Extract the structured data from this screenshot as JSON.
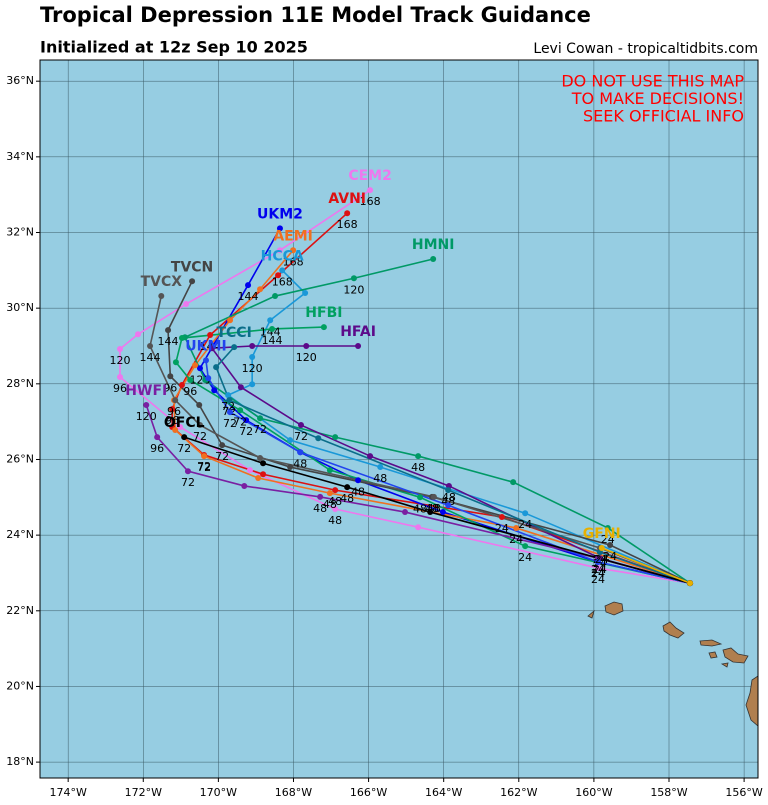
{
  "chart_data": {
    "type": "line",
    "title": "Tropical Depression 11E Model Track Guidance",
    "subtitle": "Initialized at 12z Sep 10 2025",
    "credit": "Levi Cowan - tropicaltidbits.com",
    "warning": [
      "DO NOT USE THIS MAP",
      "TO MAKE DECISIONS!",
      "SEEK OFFICIAL INFO"
    ],
    "warning_color": "#ff0000",
    "background": "#96cde2",
    "grid": true,
    "xlim": [
      -174.75,
      -155.63
    ],
    "ylim": [
      17.58,
      36.56
    ],
    "xticks": [
      {
        "value": -174,
        "label": "174°W"
      },
      {
        "value": -172,
        "label": "172°W"
      },
      {
        "value": -170,
        "label": "170°W"
      },
      {
        "value": -168,
        "label": "168°W"
      },
      {
        "value": -166,
        "label": "166°W"
      },
      {
        "value": -164,
        "label": "164°W"
      },
      {
        "value": -162,
        "label": "162°W"
      },
      {
        "value": -160,
        "label": "160°W"
      },
      {
        "value": -158,
        "label": "158°W"
      },
      {
        "value": -156,
        "label": "156°W"
      }
    ],
    "yticks": [
      {
        "value": 18,
        "label": "18°N"
      },
      {
        "value": 20,
        "label": "20°N"
      },
      {
        "value": 22,
        "label": "22°N"
      },
      {
        "value": 24,
        "label": "24°N"
      },
      {
        "value": 26,
        "label": "26°N"
      },
      {
        "value": 28,
        "label": "28°N"
      },
      {
        "value": 30,
        "label": "30°N"
      },
      {
        "value": 32,
        "label": "32°N"
      },
      {
        "value": 34,
        "label": "34°N"
      },
      {
        "value": 36,
        "label": "36°N"
      }
    ],
    "series": [
      {
        "name": "CEM2",
        "color": "#ee77ee",
        "x": [
          -157.44,
          -159.89,
          -164.68,
          -166.89,
          -169.16,
          -171.02,
          -172.62,
          -172.62,
          -172.14,
          -170.86,
          -168.36,
          -165.96
        ],
        "values": [
          22.73,
          23.13,
          24.21,
          24.69,
          25.72,
          26.86,
          28.18,
          28.92,
          29.31,
          30.11,
          31.53,
          33.12
        ],
        "labels": [
          null,
          24,
          null,
          48,
          null,
          null,
          96,
          120,
          null,
          null,
          null,
          168
        ]
      },
      {
        "name": "AVNI",
        "color": "#dd1111",
        "x": [
          -157.44,
          -162.45,
          -166.89,
          -168.81,
          -170.38,
          -171.23,
          -171.23,
          -170.97,
          -170.22,
          -168.41,
          -166.57
        ],
        "values": [
          22.73,
          24.48,
          25.19,
          25.61,
          26.12,
          26.86,
          27.33,
          27.97,
          29.29,
          30.87,
          32.51
        ],
        "labels": [
          null,
          24,
          48,
          null,
          72,
          null,
          96,
          null,
          144,
          null,
          168
        ]
      },
      {
        "name": "UKM2",
        "color": "#0000ee",
        "x": [
          -157.44,
          -159.89,
          -164.02,
          -166.28,
          -167.82,
          -169.26,
          -170.11,
          -170.49,
          -169.21,
          -168.36
        ],
        "values": [
          22.73,
          23.29,
          24.61,
          25.45,
          26.19,
          27.04,
          27.83,
          28.41,
          30.61,
          32.11
        ],
        "labels": [
          null,
          24,
          null,
          48,
          null,
          72,
          null,
          120,
          144,
          null
        ]
      },
      {
        "name": "AEMI",
        "color": "#f07020",
        "x": [
          -157.44,
          -162.07,
          -167.03,
          -168.94,
          -170.38,
          -171.15,
          -171.18,
          -170.62,
          -169.69,
          -168.89,
          -168.01
        ],
        "values": [
          22.73,
          24.19,
          25.11,
          25.51,
          26.09,
          26.78,
          27.57,
          28.49,
          29.68,
          30.5,
          31.53
        ],
        "labels": [
          null,
          24,
          48,
          null,
          72,
          null,
          96,
          null,
          null,
          null,
          168
        ]
      },
      {
        "name": "HCCA",
        "color": "#1a98d8",
        "x": [
          -157.44,
          -161.83,
          -165.69,
          -168.09,
          -169.74,
          -169.1,
          -169.1,
          -168.62,
          -167.69,
          -168.3
        ],
        "values": [
          22.73,
          24.58,
          25.8,
          26.51,
          27.7,
          27.99,
          28.71,
          29.68,
          30.4,
          31.0
        ],
        "labels": [
          null,
          24,
          48,
          null,
          72,
          null,
          120,
          144,
          null,
          168
        ]
      },
      {
        "name": "HMNI",
        "color": "#009966",
        "x": [
          -157.44,
          -159.63,
          -162.15,
          -164.68,
          -166.89,
          -168.89,
          -170.35,
          -170.89,
          -168.49,
          -166.39,
          -164.28
        ],
        "values": [
          22.73,
          24.19,
          25.4,
          26.09,
          26.59,
          27.09,
          28.1,
          29.23,
          30.32,
          30.79,
          31.3
        ],
        "labels": [
          null,
          24,
          null,
          48,
          null,
          72,
          null,
          null,
          null,
          120,
          null
        ]
      },
      {
        "name": "HFBI",
        "color": "#00a060",
        "x": [
          -157.44,
          -161.83,
          -164.63,
          -167.03,
          -169.42,
          -170.75,
          -171.13,
          -170.97,
          -168.57,
          -167.19
        ],
        "values": [
          22.73,
          23.71,
          25.0,
          25.72,
          27.3,
          28.1,
          28.57,
          29.21,
          29.45,
          29.5
        ],
        "labels": [
          null,
          24,
          48,
          null,
          72,
          96,
          null,
          null,
          144,
          null
        ]
      },
      {
        "name": "HFAI",
        "color": "#5c0a8a",
        "x": [
          -157.44,
          -159.84,
          -163.86,
          -165.96,
          -167.8,
          -169.4,
          -170.17,
          -169.1,
          -167.66,
          -166.28
        ],
        "values": [
          22.73,
          23.39,
          25.3,
          26.09,
          26.91,
          27.91,
          28.94,
          29.0,
          29.0,
          29.0
        ],
        "labels": [
          null,
          24,
          48,
          null,
          72,
          null,
          null,
          null,
          120,
          null
        ]
      },
      {
        "name": "HWFI",
        "color": "#7a1fa2",
        "x": [
          -157.44,
          -159.89,
          -165.03,
          -167.29,
          -169.31,
          -170.81,
          -171.63,
          -171.92
        ],
        "values": [
          22.73,
          23.39,
          24.61,
          25.01,
          25.3,
          25.69,
          26.59,
          27.44
        ],
        "labels": [
          null,
          24,
          null,
          48,
          null,
          72,
          96,
          120
        ]
      },
      {
        "name": "TVCN",
        "color": "#444444",
        "x": [
          -157.44,
          -159.57,
          -164.31,
          -168.09,
          -169.9,
          -170.51,
          -171.28,
          -171.34,
          -170.7
        ],
        "values": [
          22.73,
          23.74,
          25.01,
          25.8,
          26.38,
          27.44,
          28.2,
          29.42,
          30.71
        ],
        "labels": [
          null,
          24,
          48,
          null,
          72,
          null,
          96,
          144,
          null
        ]
      },
      {
        "name": "TVCX",
        "color": "#555555",
        "x": [
          -157.44,
          -159.84,
          -164.26,
          -168.89,
          -170.49,
          -171.15,
          -171.82,
          -171.52
        ],
        "values": [
          22.73,
          23.66,
          25.01,
          26.04,
          26.91,
          27.57,
          29.0,
          30.32
        ],
        "labels": [
          null,
          24,
          48,
          null,
          72,
          null,
          144,
          null
        ]
      },
      {
        "name": "TCCI",
        "color": "#0a6e8a",
        "x": [
          -157.44,
          -159.84,
          -163.88,
          -167.34,
          -169.71,
          -170.06,
          -169.58
        ],
        "values": [
          22.73,
          23.55,
          25.19,
          26.56,
          27.57,
          28.44,
          28.97
        ],
        "labels": [
          null,
          24,
          48,
          null,
          72,
          null,
          null
        ]
      },
      {
        "name": "UKMI",
        "color": "#2244ee",
        "x": [
          -157.44,
          -159.89,
          -163.88,
          -167.82,
          -169.69,
          -170.27,
          -170.33
        ],
        "values": [
          22.73,
          23.29,
          24.79,
          26.19,
          27.25,
          28.15,
          28.62
        ],
        "labels": [
          null,
          24,
          null,
          48,
          72,
          null,
          null
        ]
      },
      {
        "name": "OFCL",
        "color": "#000000",
        "x": [
          -157.44,
          -164.36,
          -166.57,
          -168.81,
          -170.91
        ],
        "values": [
          22.73,
          24.61,
          25.27,
          25.9,
          26.59
        ],
        "labels": [
          null,
          null,
          48,
          null,
          72
        ]
      },
      {
        "name": "GFNI",
        "color": "#e8b000",
        "x": [
          -157.44,
          -159.79
        ],
        "values": [
          22.73,
          23.66
        ],
        "labels": [
          null,
          24
        ]
      }
    ]
  }
}
